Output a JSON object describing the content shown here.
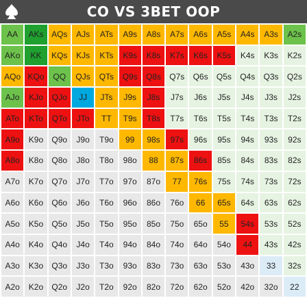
{
  "header": {
    "title": "CO VS 3BET OOP",
    "logo_icon": "spade-logo-icon"
  },
  "legend": {
    "pure-raise": "#ee1111",
    "pure-call": "#1fa02f",
    "mixed-call": "#6cc24a",
    "call": "#ffb800",
    "bluff-call": "#00a8e0",
    "fold-suited": "#e6f3e2",
    "fold-offsuit": "#e8e8e8",
    "fold-pair": "#dcecf7"
  },
  "grid": {
    "rows": [
      [
        [
          "AA",
          "mixed-call"
        ],
        [
          "AKs",
          "pure-call"
        ],
        [
          "AQs",
          "call"
        ],
        [
          "AJs",
          "call"
        ],
        [
          "ATs",
          "call"
        ],
        [
          "A9s",
          "call"
        ],
        [
          "A8s",
          "call"
        ],
        [
          "A7s",
          "call"
        ],
        [
          "A6s",
          "call"
        ],
        [
          "A5s",
          "call"
        ],
        [
          "A4s",
          "call"
        ],
        [
          "A3s",
          "call"
        ],
        [
          "A2s",
          "mixed-call"
        ]
      ],
      [
        [
          "AKo",
          "mixed-call"
        ],
        [
          "KK",
          "pure-call"
        ],
        [
          "KQs",
          "call"
        ],
        [
          "KJs",
          "call"
        ],
        [
          "KTs",
          "call"
        ],
        [
          "K9s",
          "pure-raise"
        ],
        [
          "K8s",
          "pure-raise"
        ],
        [
          "K7s",
          "pure-raise"
        ],
        [
          "K6s",
          "pure-raise"
        ],
        [
          "K5s",
          "pure-raise"
        ],
        [
          "K4s",
          "fold-suited"
        ],
        [
          "K3s",
          "fold-suited"
        ],
        [
          "K2s",
          "fold-suited"
        ]
      ],
      [
        [
          "AQo",
          "call"
        ],
        [
          "KQo",
          "pure-raise"
        ],
        [
          "QQ",
          "mixed-call"
        ],
        [
          "QJs",
          "call"
        ],
        [
          "QTs",
          "call"
        ],
        [
          "Q9s",
          "pure-raise"
        ],
        [
          "Q8s",
          "pure-raise"
        ],
        [
          "Q7s",
          "fold-suited"
        ],
        [
          "Q6s",
          "fold-suited"
        ],
        [
          "Q5s",
          "fold-suited"
        ],
        [
          "Q4s",
          "fold-suited"
        ],
        [
          "Q3s",
          "fold-suited"
        ],
        [
          "Q2s",
          "fold-suited"
        ]
      ],
      [
        [
          "AJo",
          "mixed-call"
        ],
        [
          "KJo",
          "pure-raise"
        ],
        [
          "QJo",
          "pure-raise"
        ],
        [
          "JJ",
          "bluff-call"
        ],
        [
          "JTs",
          "call"
        ],
        [
          "J9s",
          "call"
        ],
        [
          "J8s",
          "pure-raise"
        ],
        [
          "J7s",
          "fold-suited"
        ],
        [
          "J6s",
          "fold-suited"
        ],
        [
          "J5s",
          "fold-suited"
        ],
        [
          "J4s",
          "fold-suited"
        ],
        [
          "J3s",
          "fold-suited"
        ],
        [
          "J2s",
          "fold-suited"
        ]
      ],
      [
        [
          "ATo",
          "pure-raise"
        ],
        [
          "KTo",
          "pure-raise"
        ],
        [
          "QTo",
          "pure-raise"
        ],
        [
          "JTo",
          "pure-raise"
        ],
        [
          "TT",
          "call"
        ],
        [
          "T9s",
          "call"
        ],
        [
          "T8s",
          "pure-raise"
        ],
        [
          "T7s",
          "fold-suited"
        ],
        [
          "T6s",
          "fold-suited"
        ],
        [
          "T5s",
          "fold-suited"
        ],
        [
          "T4s",
          "fold-suited"
        ],
        [
          "T3s",
          "fold-suited"
        ],
        [
          "T2s",
          "fold-suited"
        ]
      ],
      [
        [
          "A9o",
          "pure-raise"
        ],
        [
          "K9o",
          "fold-offsuit"
        ],
        [
          "Q9o",
          "fold-offsuit"
        ],
        [
          "J9o",
          "fold-offsuit"
        ],
        [
          "T9o",
          "fold-offsuit"
        ],
        [
          "99",
          "call"
        ],
        [
          "98s",
          "call"
        ],
        [
          "97s",
          "pure-raise"
        ],
        [
          "96s",
          "fold-suited"
        ],
        [
          "95s",
          "fold-suited"
        ],
        [
          "94s",
          "fold-suited"
        ],
        [
          "93s",
          "fold-suited"
        ],
        [
          "92s",
          "fold-suited"
        ]
      ],
      [
        [
          "A8o",
          "pure-raise"
        ],
        [
          "K8o",
          "fold-offsuit"
        ],
        [
          "Q8o",
          "fold-offsuit"
        ],
        [
          "J8o",
          "fold-offsuit"
        ],
        [
          "T8o",
          "fold-offsuit"
        ],
        [
          "98o",
          "fold-offsuit"
        ],
        [
          "88",
          "call"
        ],
        [
          "87s",
          "call"
        ],
        [
          "86s",
          "pure-raise"
        ],
        [
          "85s",
          "fold-suited"
        ],
        [
          "84s",
          "fold-suited"
        ],
        [
          "83s",
          "fold-suited"
        ],
        [
          "82s",
          "fold-suited"
        ]
      ],
      [
        [
          "A7o",
          "fold-offsuit"
        ],
        [
          "K7o",
          "fold-offsuit"
        ],
        [
          "Q7o",
          "fold-offsuit"
        ],
        [
          "J7o",
          "fold-offsuit"
        ],
        [
          "T7o",
          "fold-offsuit"
        ],
        [
          "97o",
          "fold-offsuit"
        ],
        [
          "87o",
          "fold-offsuit"
        ],
        [
          "77",
          "call"
        ],
        [
          "76s",
          "call"
        ],
        [
          "75s",
          "fold-suited"
        ],
        [
          "74s",
          "fold-suited"
        ],
        [
          "73s",
          "fold-suited"
        ],
        [
          "72s",
          "fold-suited"
        ]
      ],
      [
        [
          "A6o",
          "fold-offsuit"
        ],
        [
          "K6o",
          "fold-offsuit"
        ],
        [
          "Q6o",
          "fold-offsuit"
        ],
        [
          "J6o",
          "fold-offsuit"
        ],
        [
          "T6o",
          "fold-offsuit"
        ],
        [
          "96o",
          "fold-offsuit"
        ],
        [
          "86o",
          "fold-offsuit"
        ],
        [
          "76o",
          "fold-offsuit"
        ],
        [
          "66",
          "call"
        ],
        [
          "65s",
          "call"
        ],
        [
          "64s",
          "fold-suited"
        ],
        [
          "63s",
          "fold-suited"
        ],
        [
          "62s",
          "fold-suited"
        ]
      ],
      [
        [
          "A5o",
          "fold-offsuit"
        ],
        [
          "K5o",
          "fold-offsuit"
        ],
        [
          "Q5o",
          "fold-offsuit"
        ],
        [
          "J5o",
          "fold-offsuit"
        ],
        [
          "T5o",
          "fold-offsuit"
        ],
        [
          "95o",
          "fold-offsuit"
        ],
        [
          "85o",
          "fold-offsuit"
        ],
        [
          "75o",
          "fold-offsuit"
        ],
        [
          "65o",
          "fold-offsuit"
        ],
        [
          "55",
          "call"
        ],
        [
          "54s",
          "pure-raise"
        ],
        [
          "53s",
          "fold-suited"
        ],
        [
          "52s",
          "fold-suited"
        ]
      ],
      [
        [
          "A4o",
          "fold-offsuit"
        ],
        [
          "K4o",
          "fold-offsuit"
        ],
        [
          "Q4o",
          "fold-offsuit"
        ],
        [
          "J4o",
          "fold-offsuit"
        ],
        [
          "T4o",
          "fold-offsuit"
        ],
        [
          "94o",
          "fold-offsuit"
        ],
        [
          "84o",
          "fold-offsuit"
        ],
        [
          "74o",
          "fold-offsuit"
        ],
        [
          "64o",
          "fold-offsuit"
        ],
        [
          "54o",
          "fold-offsuit"
        ],
        [
          "44",
          "pure-raise"
        ],
        [
          "43s",
          "fold-suited"
        ],
        [
          "42s",
          "fold-suited"
        ]
      ],
      [
        [
          "A3o",
          "fold-offsuit"
        ],
        [
          "K3o",
          "fold-offsuit"
        ],
        [
          "Q3o",
          "fold-offsuit"
        ],
        [
          "J3o",
          "fold-offsuit"
        ],
        [
          "T3o",
          "fold-offsuit"
        ],
        [
          "93o",
          "fold-offsuit"
        ],
        [
          "83o",
          "fold-offsuit"
        ],
        [
          "73o",
          "fold-offsuit"
        ],
        [
          "63o",
          "fold-offsuit"
        ],
        [
          "53o",
          "fold-offsuit"
        ],
        [
          "43o",
          "fold-offsuit"
        ],
        [
          "33",
          "fold-pair"
        ],
        [
          "32s",
          "fold-suited"
        ]
      ],
      [
        [
          "A2o",
          "fold-offsuit"
        ],
        [
          "K2o",
          "fold-offsuit"
        ],
        [
          "Q2o",
          "fold-offsuit"
        ],
        [
          "J2o",
          "fold-offsuit"
        ],
        [
          "T2o",
          "fold-offsuit"
        ],
        [
          "92o",
          "fold-offsuit"
        ],
        [
          "82o",
          "fold-offsuit"
        ],
        [
          "72o",
          "fold-offsuit"
        ],
        [
          "62o",
          "fold-offsuit"
        ],
        [
          "52o",
          "fold-offsuit"
        ],
        [
          "42o",
          "fold-offsuit"
        ],
        [
          "32o",
          "fold-offsuit"
        ],
        [
          "22",
          "fold-pair"
        ]
      ]
    ]
  }
}
